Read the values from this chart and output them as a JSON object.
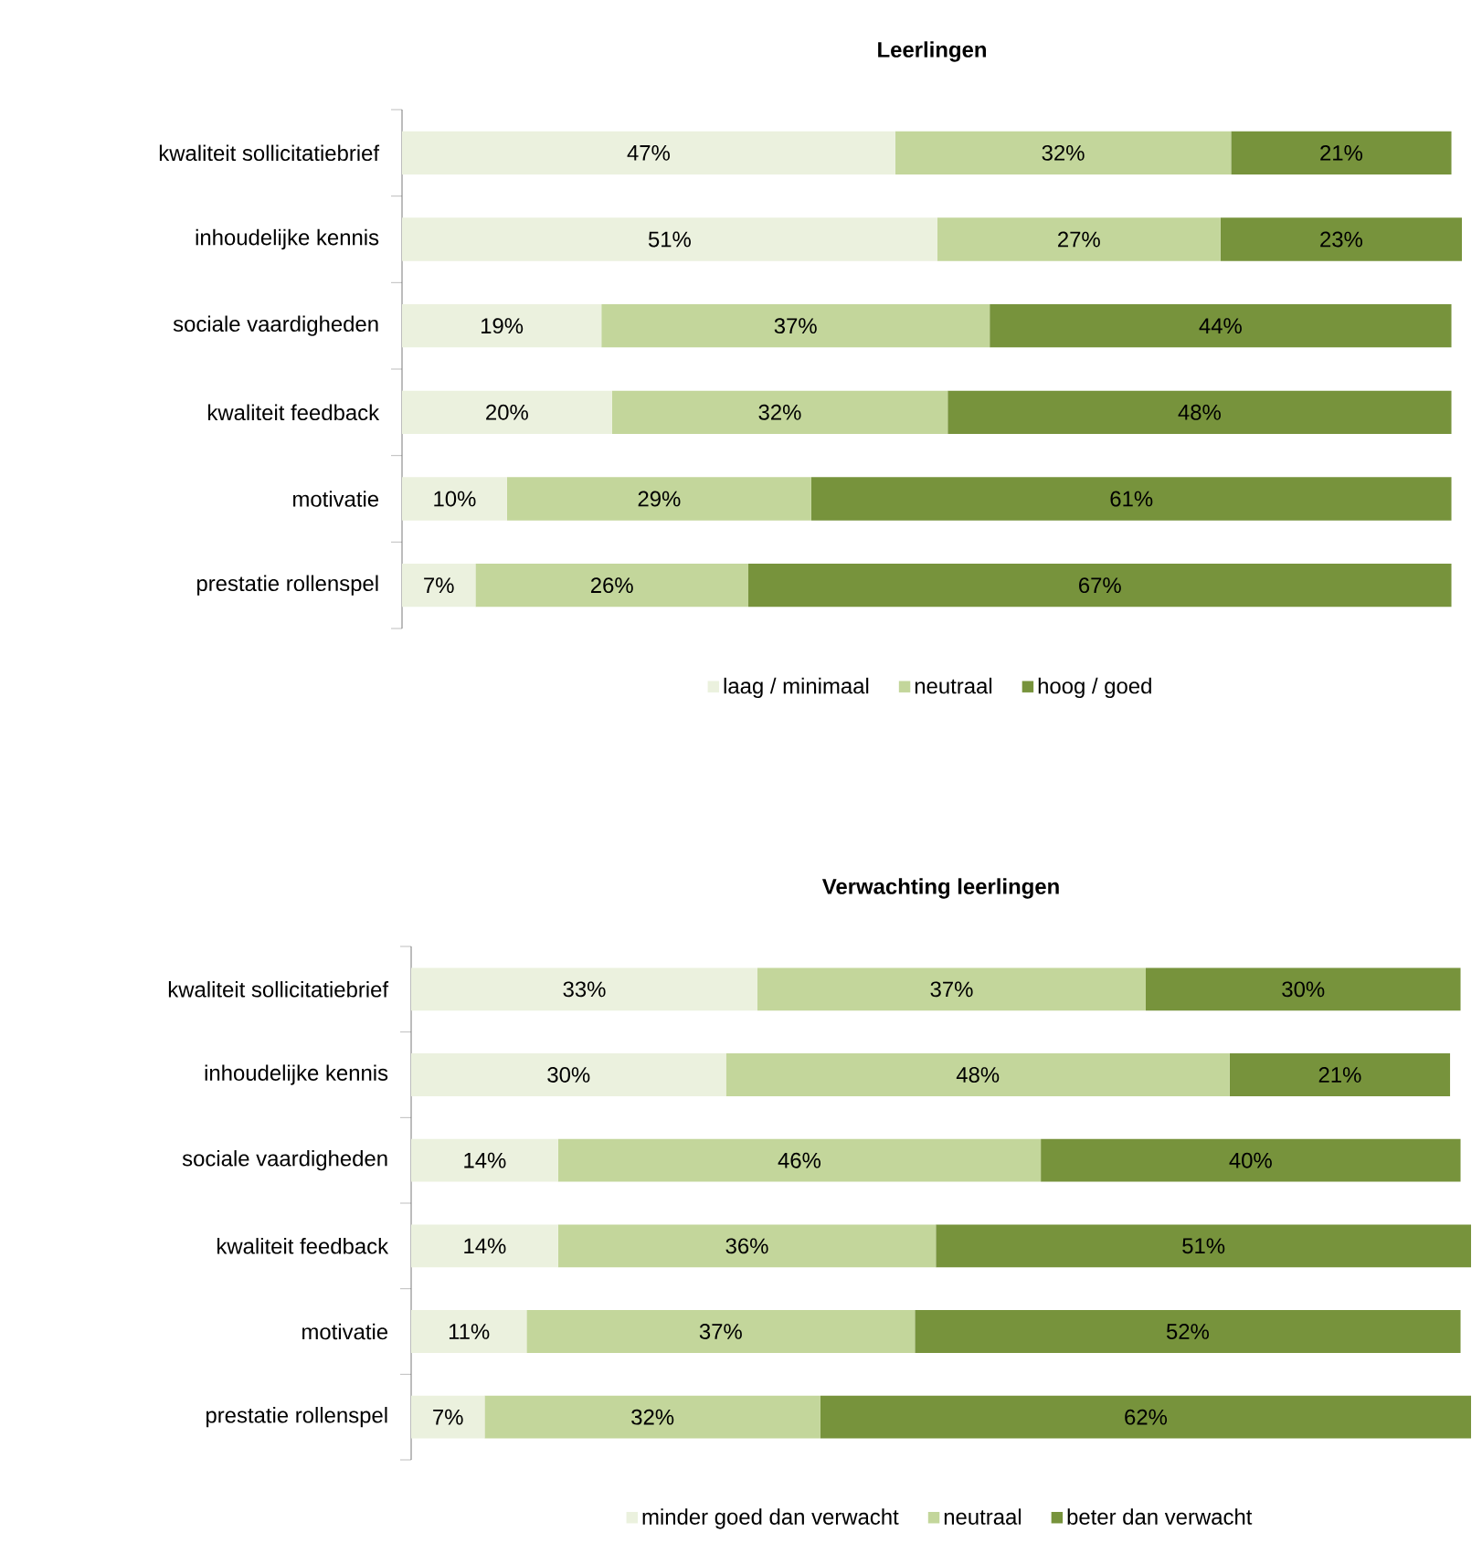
{
  "chart_data": [
    {
      "type": "bar",
      "orientation": "horizontal",
      "stacked": true,
      "title": "Leerlingen",
      "categories": [
        "kwaliteit sollicitatiebrief",
        "inhoudelijke kennis",
        "sociale vaardigheden",
        "kwaliteit feedback",
        "motivatie",
        "prestatie rollenspel"
      ],
      "series": [
        {
          "name": "laag / minimaal",
          "color": "#ebf1de",
          "values": [
            47,
            51,
            19,
            20,
            10,
            7
          ],
          "value_labels": [
            "47%",
            "51%",
            "19%",
            "20%",
            "10%",
            "7%"
          ]
        },
        {
          "name": "neutraal",
          "color": "#c3d69b",
          "values": [
            32,
            27,
            37,
            32,
            29,
            26
          ],
          "value_labels": [
            "32%",
            "27%",
            "37%",
            "32%",
            "29%",
            "26%"
          ]
        },
        {
          "name": "hoog / goed",
          "color": "#77933c",
          "values": [
            21,
            23,
            44,
            48,
            61,
            67
          ],
          "value_labels": [
            "21%",
            "23%",
            "44%",
            "48%",
            "61%",
            "67%"
          ]
        }
      ],
      "tick_labels": "y",
      "legend": "bottom"
    },
    {
      "type": "bar",
      "orientation": "horizontal",
      "stacked": true,
      "title": "Verwachting leerlingen",
      "categories": [
        "kwaliteit sollicitatiebrief",
        "inhoudelijke kennis",
        "sociale vaardigheden",
        "kwaliteit feedback",
        "motivatie",
        "prestatie rollenspel"
      ],
      "series": [
        {
          "name": "minder goed dan verwacht",
          "color": "#ebf1de",
          "values": [
            33,
            30,
            14,
            14,
            11,
            7
          ],
          "value_labels": [
            "33%",
            "30%",
            "14%",
            "14%",
            "11%",
            "7%"
          ]
        },
        {
          "name": "neutraal",
          "color": "#c3d69b",
          "values": [
            37,
            48,
            46,
            36,
            37,
            32
          ],
          "value_labels": [
            "37%",
            "48%",
            "46%",
            "36%",
            "37%",
            "32%"
          ]
        },
        {
          "name": "beter dan verwacht",
          "color": "#77933c",
          "values": [
            30,
            21,
            40,
            51,
            52,
            62
          ],
          "value_labels": [
            "30%",
            "21%",
            "40%",
            "51%",
            "52%",
            "62%"
          ]
        }
      ],
      "tick_labels": "y",
      "legend": "bottom"
    }
  ]
}
